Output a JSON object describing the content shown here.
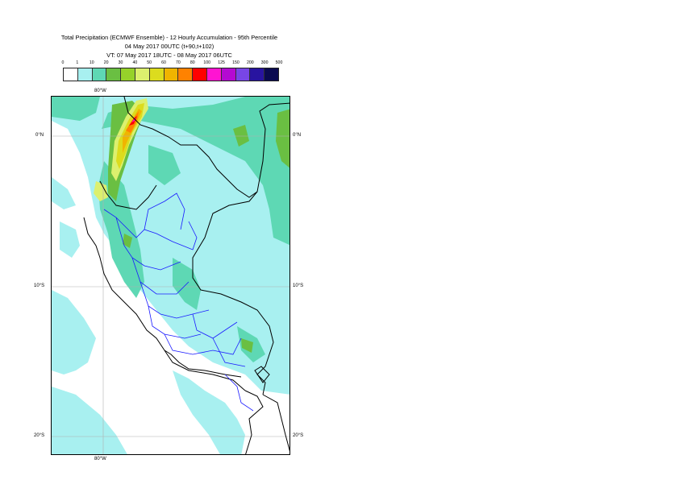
{
  "title": {
    "line1": "Total Precipitation (ECMWF Ensemble) - 12 Hourly Accumulation - 95th Percentile",
    "line2": "04 May 2017 00UTC (t+90,t+102)",
    "line3": "VT: 07 May 2017 18UTC - 08 May 2017 06UTC"
  },
  "legend": {
    "labels": [
      "0",
      "1",
      "10",
      "20",
      "30",
      "40",
      "50",
      "60",
      "70",
      "80",
      "100",
      "125",
      "150",
      "200",
      "300",
      "500"
    ],
    "colors": [
      "#ffffff",
      "#a8f0f0",
      "#5ed8b4",
      "#6abf42",
      "#96d22a",
      "#dcf06e",
      "#dcdc1e",
      "#f0b400",
      "#ff8200",
      "#ff0000",
      "#ff14d2",
      "#b40ad2",
      "#7846e6",
      "#2814a0",
      "#0a0a50"
    ]
  },
  "map": {
    "top_lon_label": "80°W",
    "bottom_lon_label": "80°W",
    "lat_labels_left": [
      "0°N",
      "10°S",
      "20°S"
    ],
    "lat_labels_right": [
      "0°N",
      "10°S",
      "20°S"
    ]
  }
}
